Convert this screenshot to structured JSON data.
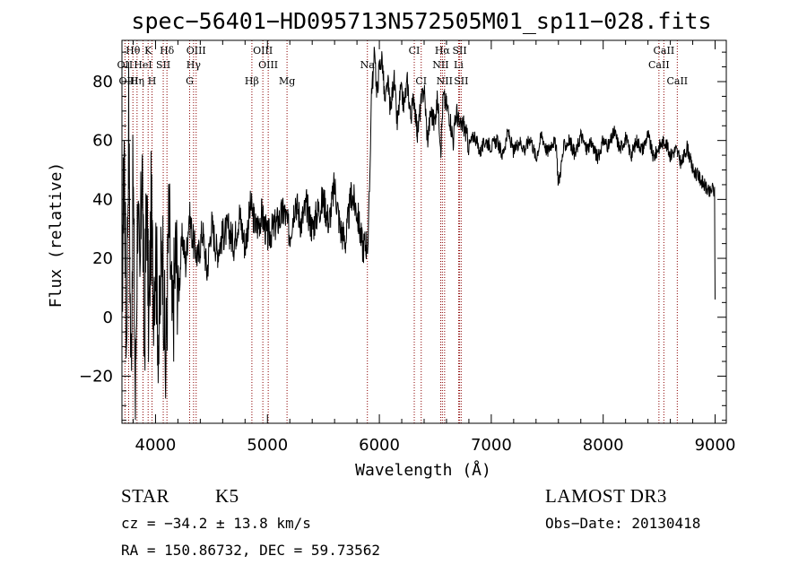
{
  "chart_data": {
    "type": "line",
    "title": "spec−56401−HD095713N572505M01_sp11−028.fits",
    "xlabel": "Wavelength (Å)",
    "ylabel": "Flux (relative)",
    "xlim": [
      3700,
      9100
    ],
    "ylim": [
      -36,
      94
    ],
    "xticks": [
      4000,
      5000,
      6000,
      7000,
      8000,
      9000
    ],
    "yticks": [
      -20,
      0,
      20,
      40,
      60,
      80
    ],
    "ytick_labels": [
      "−20",
      "0",
      "20",
      "40",
      "60",
      "80"
    ],
    "grid": false,
    "legend": "none",
    "line_color": "#000000",
    "marker_color": "#8b0000",
    "series": [
      {
        "x": [
          3700,
          3720,
          3740,
          3760,
          3780,
          3800,
          3820,
          3840,
          3860,
          3880,
          3900,
          3920,
          3940,
          3960,
          3980,
          4000,
          4030,
          4060,
          4090,
          4120,
          4150,
          4180,
          4210,
          4240,
          4270,
          4300,
          4340,
          4380,
          4420,
          4460,
          4500,
          4550,
          4600,
          4650,
          4700,
          4750,
          4800,
          4850,
          4900,
          4950,
          5000,
          5050,
          5100,
          5150,
          5200,
          5250,
          5300,
          5350,
          5400,
          5450,
          5500,
          5550,
          5600,
          5650,
          5700,
          5750,
          5800,
          5850,
          5880,
          5900,
          5915,
          5930,
          5945,
          5960,
          5975,
          6000,
          6025,
          6050,
          6075,
          6100,
          6130,
          6160,
          6190,
          6220,
          6250,
          6280,
          6310,
          6340,
          6370,
          6400,
          6430,
          6460,
          6490,
          6520,
          6550,
          6570,
          6600,
          6630,
          6660,
          6690,
          6720,
          6750,
          6800,
          6850,
          6900,
          6950,
          7000,
          7050,
          7100,
          7150,
          7200,
          7250,
          7300,
          7350,
          7400,
          7450,
          7500,
          7550,
          7580,
          7600,
          7650,
          7700,
          7750,
          7800,
          7850,
          7900,
          7950,
          8000,
          8050,
          8100,
          8150,
          8200,
          8250,
          8300,
          8350,
          8400,
          8450,
          8500,
          8550,
          8600,
          8650,
          8700,
          8750,
          8800,
          8850,
          8900,
          8950,
          8980,
          8995,
          9000
        ],
        "y": [
          5,
          60,
          -10,
          70,
          -20,
          50,
          -30,
          40,
          5,
          60,
          -15,
          45,
          -5,
          35,
          10,
          25,
          -10,
          30,
          -20,
          35,
          -5,
          22,
          10,
          28,
          18,
          35,
          25,
          20,
          30,
          15,
          32,
          22,
          28,
          30,
          25,
          35,
          24,
          38,
          30,
          35,
          27,
          30,
          33,
          36,
          28,
          40,
          32,
          38,
          30,
          36,
          40,
          32,
          45,
          30,
          26,
          42,
          36,
          24,
          25,
          26,
          48,
          78,
          82,
          92,
          75,
          85,
          88,
          72,
          80,
          70,
          82,
          65,
          77,
          72,
          80,
          68,
          75,
          62,
          72,
          78,
          60,
          70,
          66,
          74,
          58,
          75,
          72,
          68,
          60,
          70,
          64,
          66,
          58,
          62,
          56,
          60,
          58,
          60,
          55,
          63,
          56,
          60,
          57,
          61,
          54,
          62,
          56,
          60,
          58,
          45,
          58,
          60,
          55,
          62,
          57,
          59,
          54,
          60,
          58,
          63,
          57,
          61,
          55,
          60,
          57,
          62,
          54,
          58,
          60,
          55,
          57,
          52,
          58,
          50,
          48,
          45,
          42,
          44,
          42,
          6
        ]
      }
    ],
    "spectral_lines": [
      {
        "label": "Hθ",
        "x": 3798,
        "tier": 0
      },
      {
        "label": "K",
        "x": 3934,
        "tier": 0
      },
      {
        "label": "Hδ",
        "x": 4102,
        "tier": 0
      },
      {
        "label": "OIII",
        "x": 4363,
        "tier": 0
      },
      {
        "label": "OIII",
        "x": 4959,
        "tier": 0
      },
      {
        "label": "CI",
        "x": 6312,
        "tier": 0
      },
      {
        "label": "Hα",
        "x": 6563,
        "tier": 0
      },
      {
        "label": "SII",
        "x": 6717,
        "tier": 0
      },
      {
        "label": "CaII",
        "x": 8542,
        "tier": 0
      },
      {
        "label": "OII",
        "x": 3727,
        "tier": 1
      },
      {
        "label": "HeI",
        "x": 3888,
        "tier": 1
      },
      {
        "label": "SII",
        "x": 4069,
        "tier": 1
      },
      {
        "label": "Hγ",
        "x": 4340,
        "tier": 1
      },
      {
        "label": "OIII",
        "x": 5007,
        "tier": 1
      },
      {
        "label": "Na",
        "x": 5893,
        "tier": 1
      },
      {
        "label": "NII",
        "x": 6548,
        "tier": 1
      },
      {
        "label": "Li",
        "x": 6708,
        "tier": 1
      },
      {
        "label": "CaII",
        "x": 8498,
        "tier": 1
      },
      {
        "label": "OIII",
        "x": 3760,
        "tier": 2
      },
      {
        "label": "Hη",
        "x": 3835,
        "tier": 2
      },
      {
        "label": "H",
        "x": 3969,
        "tier": 2
      },
      {
        "label": "G",
        "x": 4305,
        "tier": 2
      },
      {
        "label": "Hβ",
        "x": 4861,
        "tier": 2
      },
      {
        "label": "Mg",
        "x": 5175,
        "tier": 2
      },
      {
        "label": "CI",
        "x": 6374,
        "tier": 2
      },
      {
        "label": "NII",
        "x": 6583,
        "tier": 2
      },
      {
        "label": "SII",
        "x": 6731,
        "tier": 2
      },
      {
        "label": "CaII",
        "x": 8662,
        "tier": 2
      }
    ]
  },
  "info": {
    "class": "STAR",
    "subclass": "K5",
    "survey": "LAMOST DR3",
    "cz": "cz = −34.2 ± 13.8 km/s",
    "obs_date": "Obs−Date: 20130418",
    "radec": "RA = 150.86732, DEC =  59.73562"
  }
}
